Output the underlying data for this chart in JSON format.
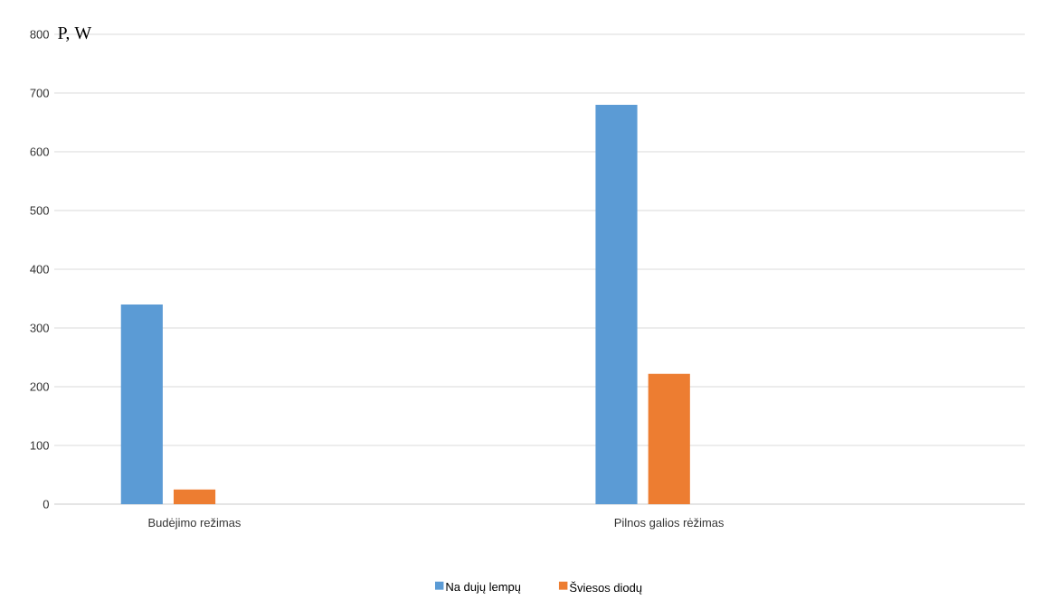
{
  "chart_data": {
    "type": "bar",
    "ylabel": "P, W",
    "categories": [
      "Budėjimo režimas",
      "Pilnos galios rėžimas"
    ],
    "series": [
      {
        "name": "Na dujų lempų",
        "color": "#5b9bd5",
        "values": [
          340,
          680
        ]
      },
      {
        "name": "Šviesos diodų",
        "color": "#ed7d31",
        "values": [
          25,
          222
        ]
      }
    ],
    "ylim": [
      0,
      800
    ],
    "yticks": [
      0,
      100,
      200,
      300,
      400,
      500,
      600,
      700,
      800
    ],
    "grid": "y",
    "legend": "bottom"
  }
}
